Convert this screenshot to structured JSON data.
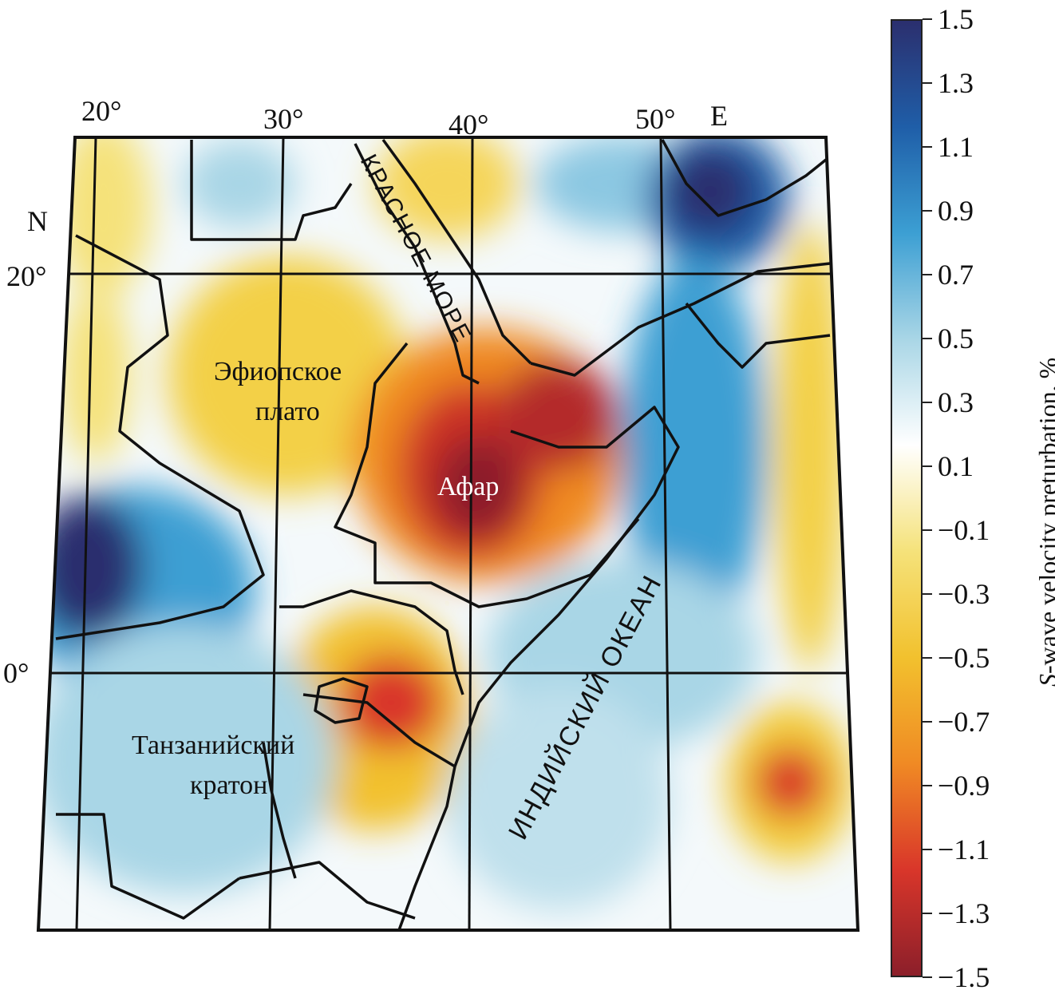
{
  "map": {
    "lon_labels": [
      "20°",
      "30°",
      "40°",
      "50°",
      "E"
    ],
    "lat_labels": [
      "N",
      "20°",
      "0°"
    ],
    "regions": {
      "red_sea": "КРАСНОЕ МОРЕ",
      "indian_ocean": "ИНДИЙСКИЙ ОКЕАН",
      "ethiopian_plateau_line1": "Эфиопское",
      "ethiopian_plateau_line2": "плато",
      "afar": "Афар",
      "tanzanian_craton_line1": "Танзанийский",
      "tanzanian_craton_line2": "кратон"
    }
  },
  "colorbar": {
    "title_var": "S",
    "title_rest": "-wave velocity preturbation, %",
    "ticks": [
      "1.5",
      "1.3",
      "1.1",
      "0.9",
      "0.7",
      "0.5",
      "0.3",
      "0.1",
      "−0.1",
      "−0.3",
      "−0.5",
      "−0.7",
      "−0.9",
      "−1.1",
      "−1.3",
      "−1.5"
    ],
    "range": [
      -1.5,
      1.5
    ],
    "colors": [
      "#2b2f6e",
      "#1f5ea8",
      "#3c9fd3",
      "#a9d6e6",
      "#ffffff",
      "#f5e27a",
      "#f2c12e",
      "#f08a24",
      "#d9362a",
      "#8c1f2a"
    ]
  }
}
